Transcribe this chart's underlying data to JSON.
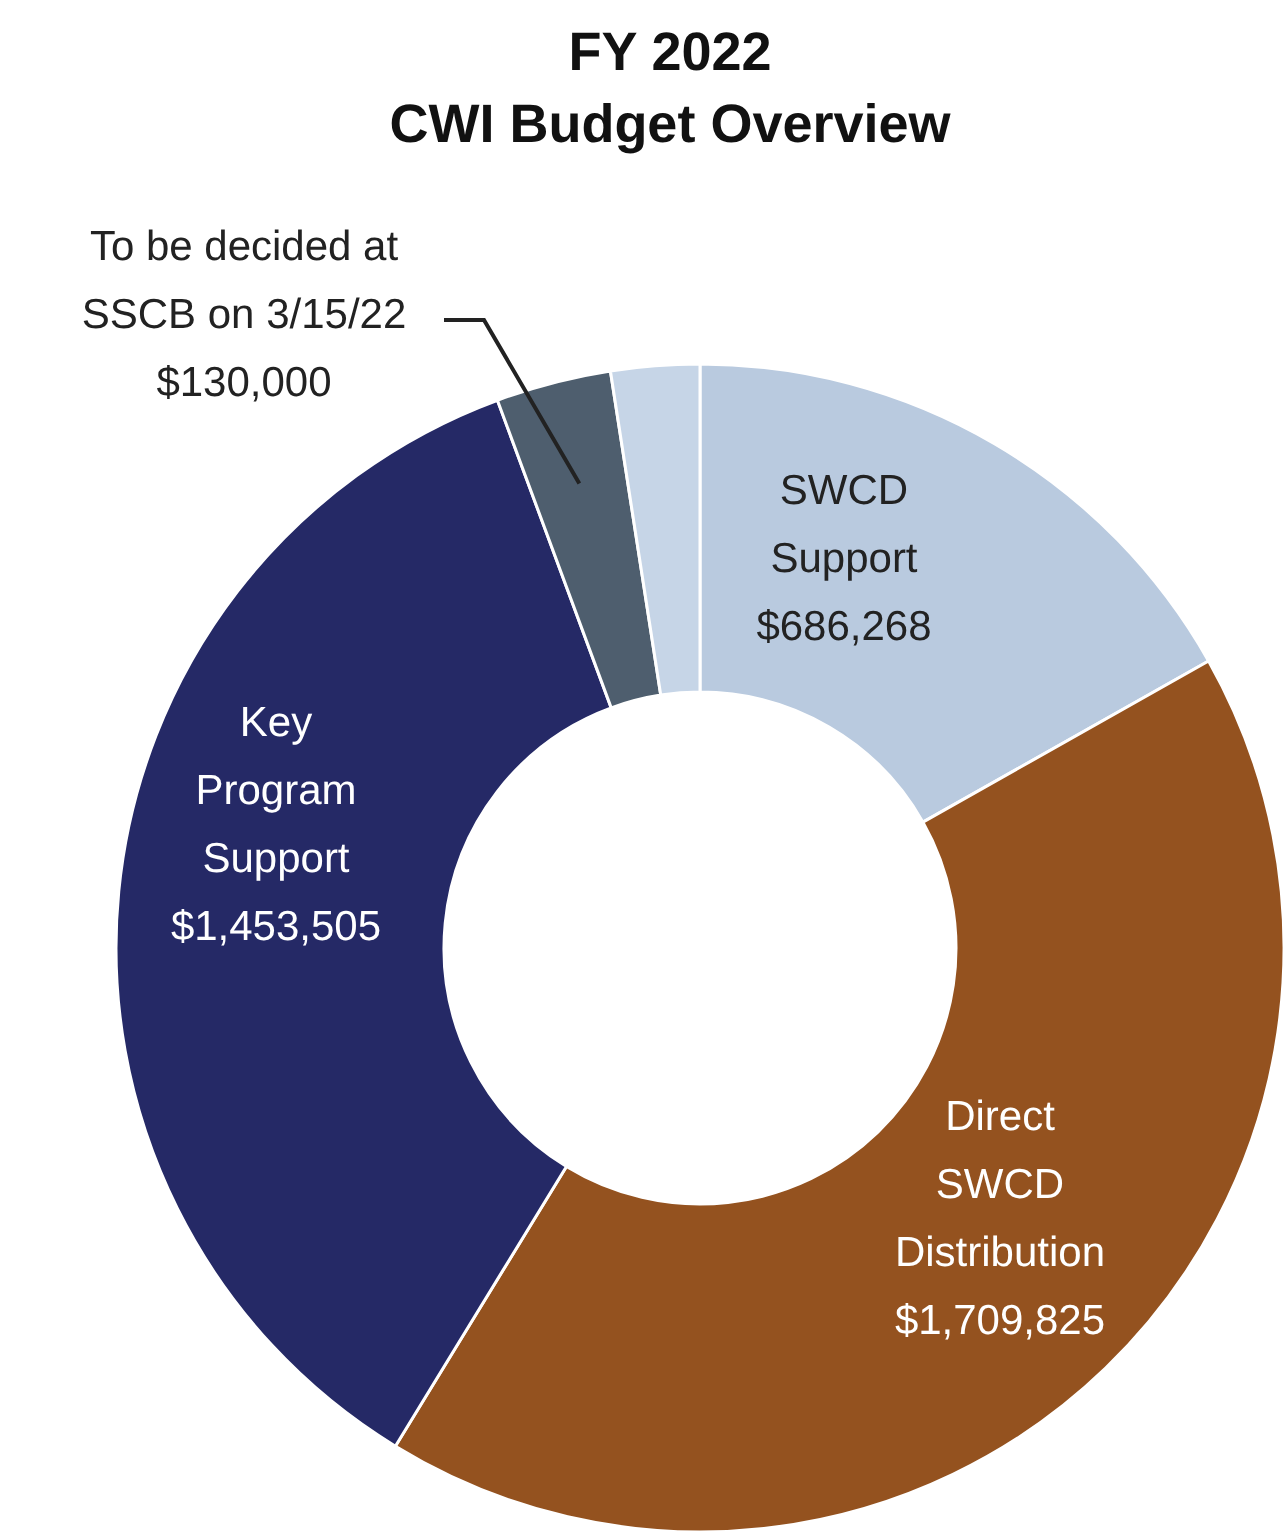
{
  "chart_data": {
    "type": "donut",
    "title": "FY 2022\nCWI Budget Overview",
    "categories": [
      "SWCD Support",
      "Direct SWCD Distribution",
      "Key Program Support",
      "To be decided at SSCB on 3/15/22",
      null
    ],
    "values": [
      686268,
      1709825,
      1453505,
      130000,
      100000
    ],
    "value_labels": [
      "$686,268",
      "$1,709,825",
      "$1,453,505",
      "$130,000",
      null
    ],
    "colors": [
      "#b9cadf",
      "#94521f",
      "#252966",
      "#4e5e6e",
      "#c6d5e7"
    ]
  }
}
